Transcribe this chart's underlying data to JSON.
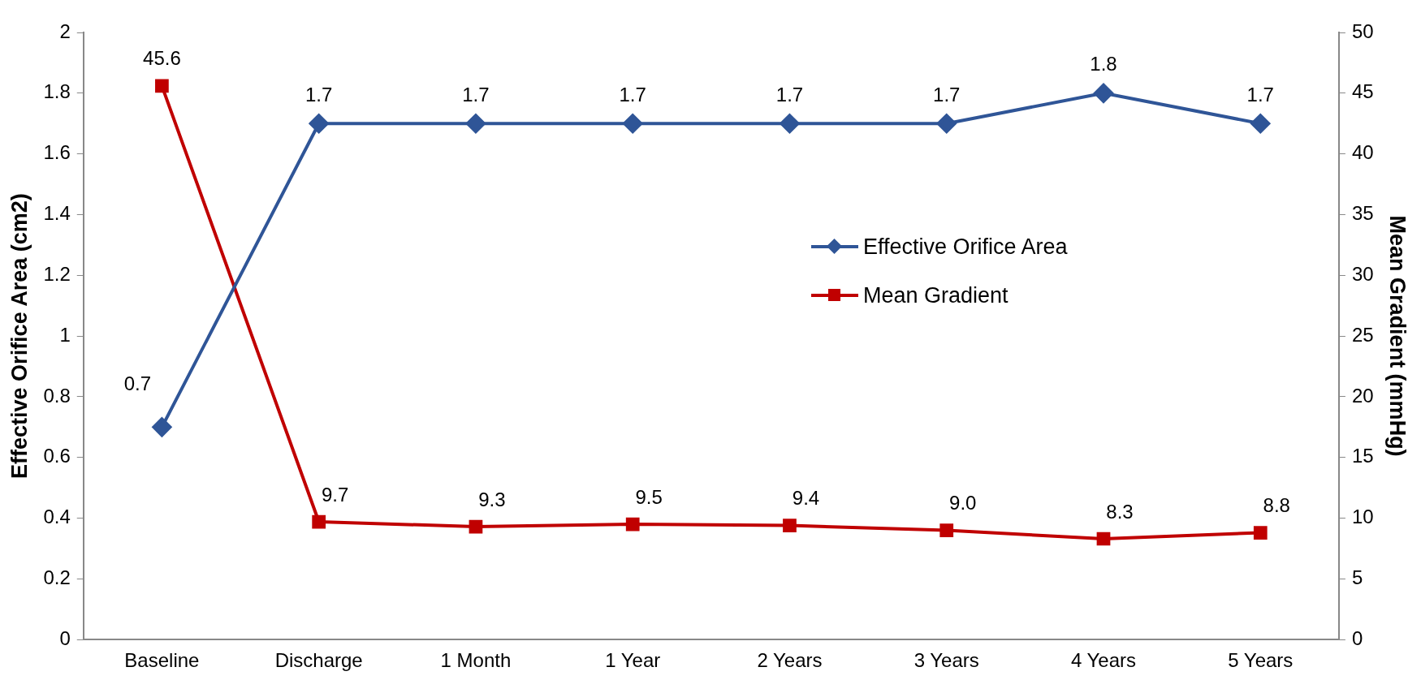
{
  "chart_data": {
    "type": "line",
    "categories": [
      "Baseline",
      "Discharge",
      "1 Month",
      "1 Year",
      "2 Years",
      "3 Years",
      "4 Years",
      "5 Years"
    ],
    "ylabel": "Effective Orifice Area (cm2)",
    "y2label": "Mean Gradient (mmHg)",
    "ylim": [
      0,
      2
    ],
    "yticks": [
      0,
      0.2,
      0.4,
      0.6,
      0.8,
      1,
      1.2,
      1.4,
      1.6,
      1.8,
      2
    ],
    "y2lim": [
      0,
      50
    ],
    "y2ticks": [
      0,
      5,
      10,
      15,
      20,
      25,
      30,
      35,
      40,
      45,
      50
    ],
    "grid": false,
    "legend": "right",
    "line_style": "solid",
    "series": [
      {
        "name": "Effective Orifice Area",
        "color": "#2f5597",
        "marker": "diamond",
        "values": [
          0.7,
          1.7,
          1.7,
          1.7,
          1.7,
          1.7,
          1.8,
          1.7
        ],
        "value_labels": [
          "0.7",
          "1.7",
          "1.7",
          "1.7",
          "1.7",
          "1.7",
          "1.8",
          "1.7"
        ]
      },
      {
        "name": "Mean Gradient",
        "color": "#c00000",
        "marker": "square",
        "axis": "y2",
        "values": [
          45.6,
          9.7,
          9.3,
          9.5,
          9.4,
          9.0,
          8.3,
          8.8
        ],
        "value_labels": [
          "45.6",
          "9.7",
          "9.3",
          "9.5",
          "9.4",
          "9.0",
          "8.3",
          "8.8"
        ]
      }
    ]
  }
}
